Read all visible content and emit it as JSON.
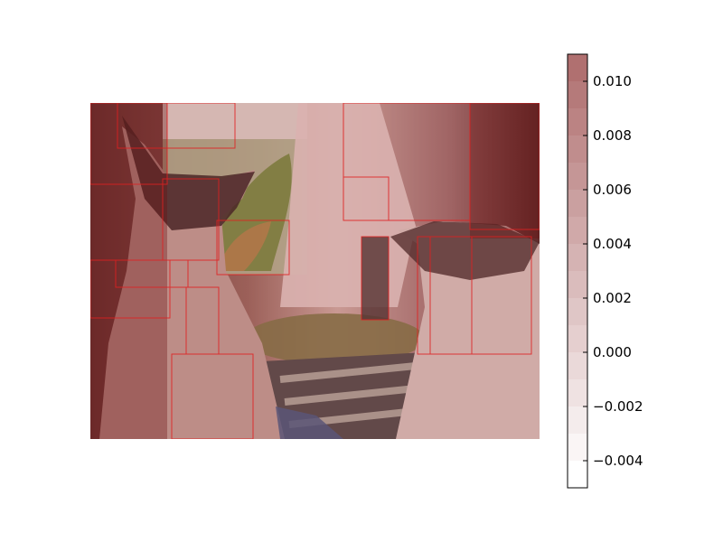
{
  "chart_data": {
    "type": "heatmap",
    "title": "",
    "xlabel": "",
    "ylabel": "",
    "background_image": "photo of two dogs looking out a sunny window, sheer curtain and plants outside",
    "overlay": "translucent red saliency map with rectangular segment boundaries drawn in red",
    "colormap": {
      "name": "white-to-dark-red",
      "low_color": "#ffffff",
      "high_color": "#b07070"
    },
    "colorbar": {
      "vmin": -0.005,
      "vmax": 0.011,
      "ticks": [
        -0.004,
        -0.002,
        0.0,
        0.002,
        0.004,
        0.006,
        0.008,
        0.01
      ],
      "tick_labels": [
        "−0.004",
        "−0.002",
        "0.000",
        "0.002",
        "0.004",
        "0.006",
        "0.008",
        "0.010"
      ],
      "levels": 16
    },
    "grid": false,
    "axes_visible": false
  }
}
